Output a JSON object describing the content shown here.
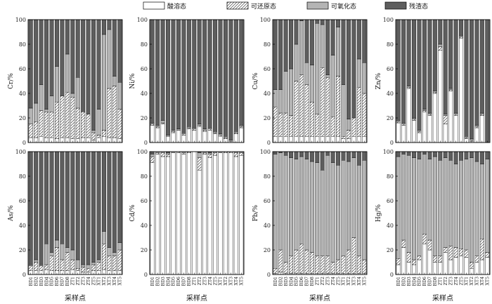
{
  "chart_data": {
    "type": "stacked-bar",
    "stacking": "100%",
    "legend": {
      "position": "top",
      "items": [
        {
          "name": "酸溶态",
          "color": "#ffffff",
          "pattern": "none"
        },
        {
          "name": "可还原态",
          "color": "#ffffff",
          "pattern": "hatch"
        },
        {
          "name": "可氧化态",
          "color": "#b4b4b4",
          "pattern": "none"
        },
        {
          "name": "残渣态",
          "color": "#5e5e5e",
          "pattern": "none"
        }
      ]
    },
    "categories": [
      "BD1",
      "BD2",
      "BD3",
      "BD4",
      "BD5",
      "BD6",
      "BD7",
      "BD8",
      "ZT1",
      "ZT2",
      "ZT3",
      "ZT4",
      "ZT5",
      "XT1",
      "XT2",
      "XT3",
      "XT4",
      "XT5"
    ],
    "xlabel": "采样点",
    "ylim": [
      0,
      100
    ],
    "yticks": [
      0,
      20,
      40,
      60,
      80,
      100
    ],
    "panels": [
      {
        "ylabel": "Cr/%",
        "cumulative": [
          [
            4,
            4,
            5,
            4,
            4,
            3,
            4,
            4,
            3,
            3,
            4,
            4,
            2,
            4,
            5,
            4,
            4,
            3
          ],
          [
            15,
            17,
            26,
            25,
            25,
            33,
            38,
            41,
            37,
            28,
            25,
            23,
            8,
            6,
            10,
            44,
            46,
            27
          ],
          [
            28,
            32,
            47,
            27,
            38,
            62,
            38,
            72,
            40,
            53,
            24,
            10,
            10,
            27,
            88,
            92,
            54,
            49
          ],
          [
            100,
            100,
            100,
            100,
            100,
            100,
            100,
            100,
            100,
            100,
            100,
            100,
            100,
            100,
            100,
            100,
            100,
            100
          ]
        ]
      },
      {
        "ylabel": "Ni/%",
        "cumulative": [
          [
            14,
            12,
            15,
            5,
            8,
            10,
            6,
            11,
            10,
            13,
            9,
            10,
            7,
            5,
            3,
            1,
            7,
            12
          ],
          [
            15,
            13,
            16,
            5,
            9,
            10,
            7,
            12,
            11,
            14,
            10,
            11,
            8,
            6,
            4,
            1,
            8,
            13
          ],
          [
            16,
            14,
            18,
            6,
            10,
            11,
            8,
            13,
            12,
            15,
            11,
            12,
            9,
            7,
            5,
            2,
            9,
            14
          ],
          [
            100,
            100,
            100,
            100,
            100,
            100,
            100,
            100,
            100,
            100,
            100,
            100,
            100,
            100,
            100,
            100,
            100,
            100
          ]
        ]
      },
      {
        "ylabel": "Cu/%",
        "cumulative": [
          [
            5,
            5,
            5,
            5,
            5,
            5,
            5,
            5,
            5,
            5,
            5,
            5,
            5,
            3,
            3,
            5,
            5,
            5
          ],
          [
            29,
            24,
            24,
            22,
            50,
            55,
            47,
            33,
            23,
            61,
            53,
            21,
            54,
            5,
            10,
            20,
            45,
            40
          ],
          [
            43,
            43,
            58,
            60,
            80,
            99,
            65,
            63,
            97,
            96,
            55,
            71,
            94,
            47,
            19,
            20,
            68,
            65
          ],
          [
            100,
            100,
            100,
            100,
            100,
            100,
            100,
            100,
            100,
            100,
            100,
            100,
            100,
            100,
            100,
            100,
            100,
            100
          ]
        ]
      },
      {
        "ylabel": "Zn/%",
        "cumulative": [
          [
            16,
            14,
            44,
            18,
            8,
            25,
            22,
            40,
            75,
            15,
            42,
            22,
            85,
            3,
            1,
            12,
            22,
            0
          ],
          [
            17,
            15,
            45,
            19,
            9,
            26,
            23,
            41,
            78,
            22,
            43,
            23,
            86,
            4,
            2,
            13,
            23,
            0
          ],
          [
            18,
            16,
            46,
            20,
            10,
            27,
            24,
            42,
            80,
            23,
            44,
            24,
            87,
            5,
            3,
            14,
            24,
            0
          ],
          [
            100,
            100,
            100,
            100,
            100,
            100,
            100,
            100,
            100,
            100,
            100,
            100,
            100,
            100,
            100,
            100,
            100,
            100
          ]
        ]
      },
      {
        "ylabel": "As/%",
        "cumulative": [
          [
            3,
            3,
            3,
            4,
            3,
            3,
            3,
            3,
            4,
            3,
            2,
            2,
            3,
            3,
            4,
            3,
            3,
            3
          ],
          [
            7,
            10,
            7,
            8,
            15,
            22,
            12,
            18,
            12,
            5,
            6,
            5,
            8,
            10,
            25,
            15,
            15,
            20
          ],
          [
            8,
            12,
            8,
            25,
            18,
            28,
            25,
            22,
            20,
            12,
            8,
            8,
            10,
            12,
            35,
            22,
            18,
            26
          ],
          [
            100,
            100,
            100,
            100,
            100,
            100,
            100,
            100,
            100,
            100,
            100,
            100,
            100,
            100,
            100,
            100,
            100,
            100
          ]
        ]
      },
      {
        "ylabel": "Cd/%",
        "cumulative": [
          [
            91,
            98,
            96,
            96,
            99,
            99,
            98,
            99,
            100,
            85,
            98,
            95,
            97,
            99,
            99,
            99,
            96,
            97
          ],
          [
            96,
            99,
            99,
            98,
            99,
            100,
            99,
            100,
            100,
            95,
            99,
            98,
            99,
            99,
            100,
            100,
            99,
            99
          ],
          [
            98,
            100,
            100,
            99,
            100,
            100,
            100,
            100,
            100,
            99,
            100,
            99,
            100,
            100,
            100,
            100,
            100,
            100
          ],
          [
            100,
            100,
            100,
            100,
            100,
            100,
            100,
            100,
            100,
            100,
            100,
            100,
            100,
            100,
            100,
            100,
            100,
            100
          ]
        ]
      },
      {
        "ylabel": "Pb/%",
        "cumulative": [
          [
            1,
            2,
            1,
            1,
            1,
            1,
            1,
            1,
            1,
            1,
            1,
            1,
            1,
            1,
            1,
            1,
            1,
            1
          ],
          [
            5,
            20,
            10,
            15,
            20,
            25,
            20,
            18,
            15,
            15,
            15,
            10,
            12,
            15,
            20,
            30,
            15,
            12
          ],
          [
            98,
            99,
            97,
            95,
            94,
            96,
            94,
            92,
            91,
            85,
            97,
            91,
            89,
            93,
            92,
            95,
            89,
            93
          ],
          [
            100,
            100,
            100,
            100,
            100,
            100,
            100,
            100,
            100,
            100,
            100,
            100,
            100,
            100,
            100,
            100,
            100,
            100
          ]
        ]
      },
      {
        "ylabel": "Hg/%",
        "cumulative": [
          [
            8,
            22,
            10,
            8,
            12,
            25,
            20,
            10,
            10,
            18,
            12,
            14,
            15,
            14,
            5,
            10,
            12,
            14
          ],
          [
            13,
            28,
            18,
            12,
            15,
            33,
            28,
            15,
            15,
            22,
            23,
            22,
            21,
            20,
            10,
            15,
            29,
            18
          ],
          [
            96,
            98,
            97,
            95,
            94,
            98,
            94,
            96,
            93,
            95,
            93,
            90,
            93,
            94,
            95,
            92,
            90,
            94
          ],
          [
            100,
            100,
            100,
            100,
            100,
            100,
            100,
            100,
            100,
            100,
            100,
            100,
            100,
            100,
            100,
            100,
            100,
            100
          ]
        ]
      }
    ]
  }
}
